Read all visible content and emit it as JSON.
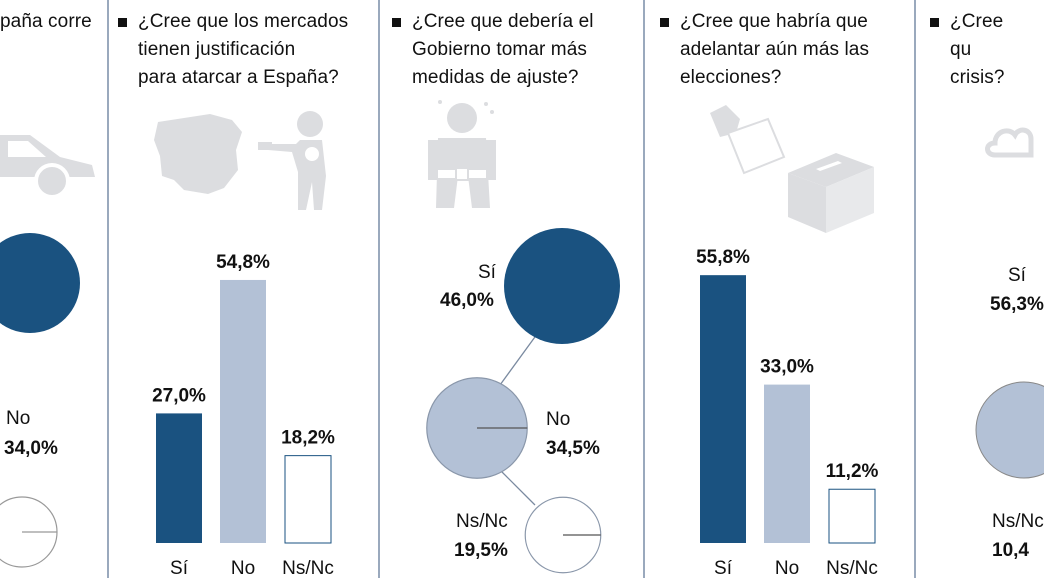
{
  "colors": {
    "dark": "#1a5280",
    "light": "#b3c1d6",
    "illustration": "#dcdde0",
    "divider": "#9aa9bd"
  },
  "panels": [
    {
      "question": "paña corre",
      "illustration": "car-icon",
      "chart_data": {
        "type": "pie",
        "categories": [
          "No"
        ],
        "values": [
          34.0
        ],
        "value_labels": [
          "34,0%"
        ]
      }
    },
    {
      "question": "¿Cree que los mercados\ntienen justificación\npara atarcar a  España?",
      "illustration": "spain-map-and-robber-icon",
      "chart_data": {
        "type": "bar",
        "categories": [
          "Sí",
          "No",
          "Ns/Nc"
        ],
        "values": [
          27.0,
          54.8,
          18.2
        ],
        "value_labels": [
          "27,0%",
          "54,8%",
          "18,2%"
        ]
      }
    },
    {
      "question": "¿Cree que debería el\nGobierno tomar más\nmedidas de ajuste?",
      "illustration": "tight-belt-figure-icon",
      "chart_data": {
        "type": "pie",
        "categories": [
          "Sí",
          "No",
          "Ns/Nc"
        ],
        "values": [
          46.0,
          34.5,
          19.5
        ],
        "value_labels": [
          "46,0%",
          "34,5%",
          "19,5%"
        ]
      }
    },
    {
      "question": "¿Cree que habría que\nadelantar aún más las\nelecciones?",
      "illustration": "ballot-box-icon",
      "chart_data": {
        "type": "bar",
        "categories": [
          "Sí",
          "No",
          "Ns/Nc"
        ],
        "values": [
          55.8,
          33.0,
          11.2
        ],
        "value_labels": [
          "55,8%",
          "33,0%",
          "11,2%"
        ]
      }
    },
    {
      "question": "¿Cree qu\ncrisis?",
      "illustration": "cloud-icon",
      "chart_data": {
        "type": "pie",
        "categories": [
          "Sí",
          "Ns/Nc"
        ],
        "values": [
          56.3,
          10.4
        ],
        "value_labels": [
          "56,3%",
          "10,4"
        ]
      }
    }
  ]
}
